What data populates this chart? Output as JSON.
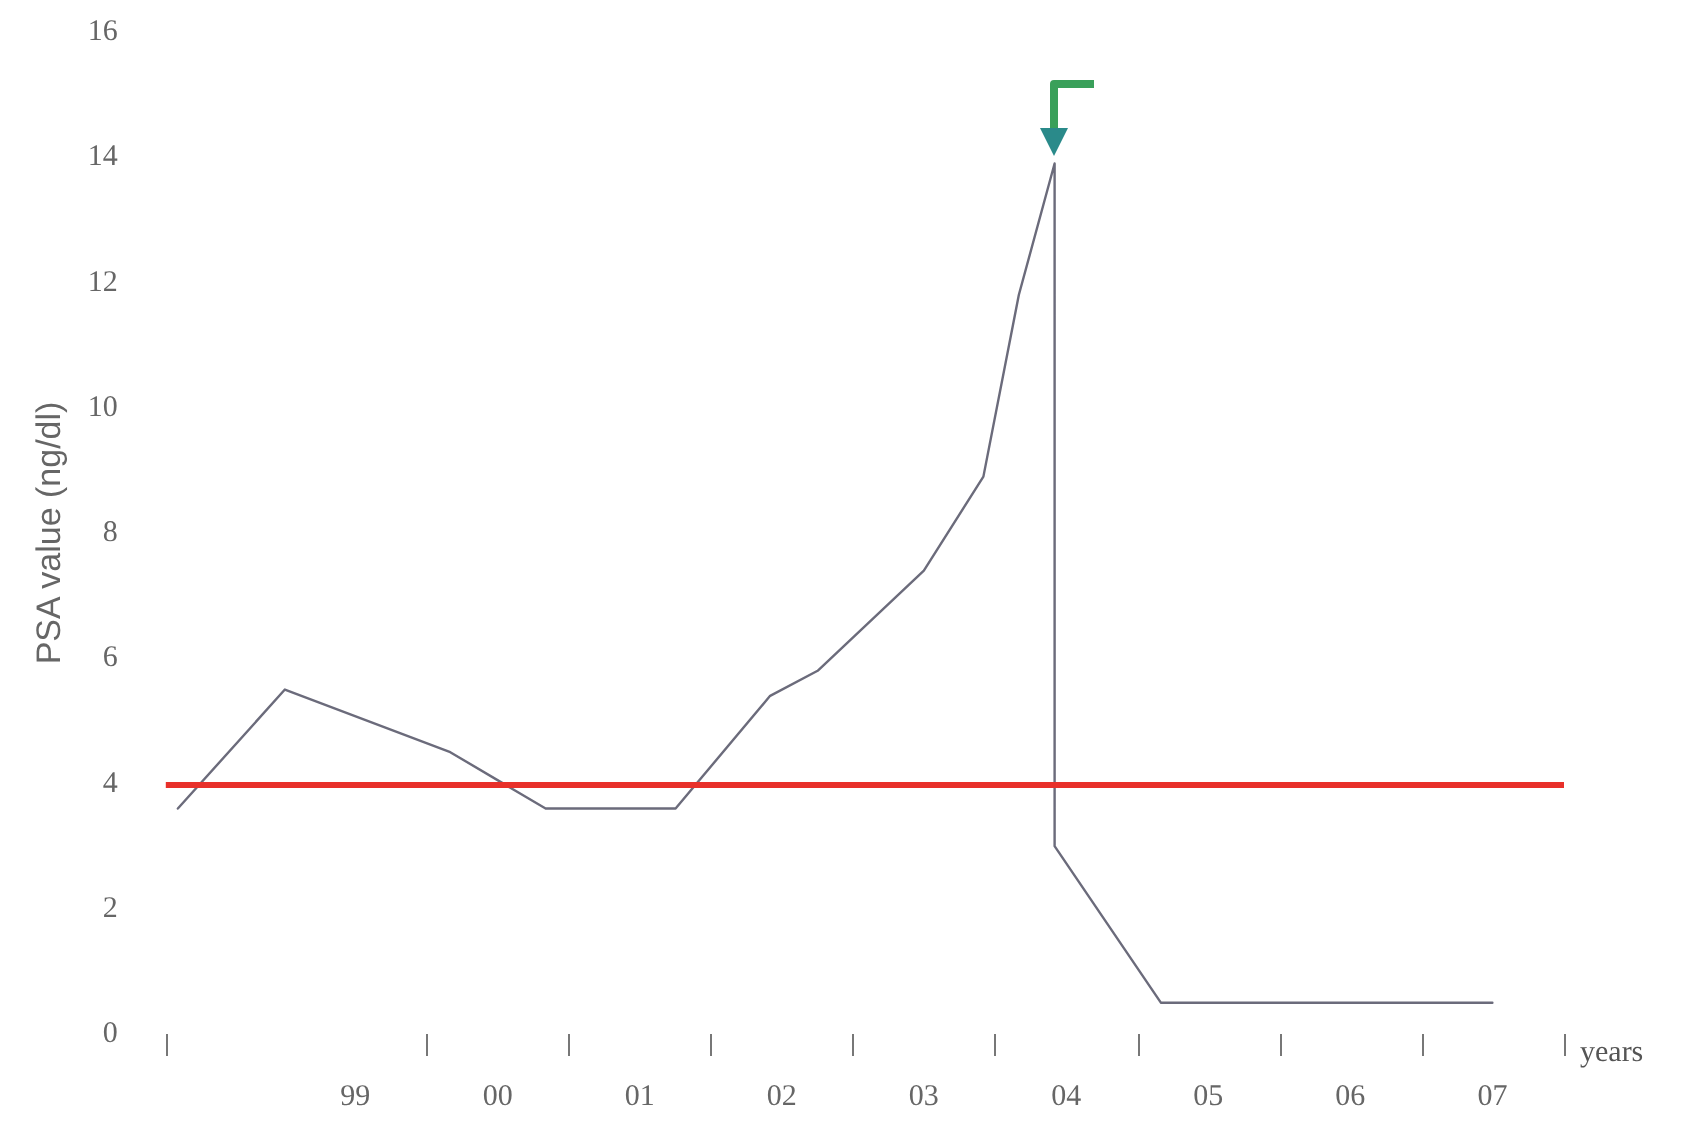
{
  "chart_data": {
    "type": "line",
    "ylabel": "PSA value (ng/dl)",
    "xlabel": "years",
    "x": [
      "1998-04",
      "1999-01",
      "2000-03",
      "2000-11",
      "2001-10",
      "2002-06",
      "2002-10",
      "2003-07",
      "2003-12",
      "2004-03",
      "2004-06",
      "2004-06",
      "2005-03",
      "2007-07"
    ],
    "series": [
      {
        "color": "#6b6b7b",
        "values": [
          3.6,
          5.5,
          4.5,
          3.6,
          3.6,
          5.4,
          5.8,
          7.4,
          8.9,
          11.8,
          13.9,
          3.0,
          0.5,
          0.5
        ]
      }
    ],
    "xlim": [
      "1998-03",
      "2008"
    ],
    "xticks": [
      {
        "value": "1998-03",
        "label": null
      },
      {
        "value": "1999-07",
        "label": "99"
      },
      {
        "value": "2000",
        "label": null
      },
      {
        "value": "2000-07",
        "label": "00"
      },
      {
        "value": "2001",
        "label": null
      },
      {
        "value": "2001-07",
        "label": "01"
      },
      {
        "value": "2002",
        "label": null
      },
      {
        "value": "2002-07",
        "label": "02"
      },
      {
        "value": "2003",
        "label": null
      },
      {
        "value": "2003-07",
        "label": "03"
      },
      {
        "value": "2004",
        "label": null
      },
      {
        "value": "2004-07",
        "label": "04"
      },
      {
        "value": "2005",
        "label": null
      },
      {
        "value": "2005-07",
        "label": "05"
      },
      {
        "value": "2006",
        "label": null
      },
      {
        "value": "2006-07",
        "label": "06"
      },
      {
        "value": "2007",
        "label": null
      },
      {
        "value": "2007-07",
        "label": "07"
      },
      {
        "value": "2008",
        "label": null
      }
    ],
    "ylim": [
      0,
      16
    ],
    "yticks": [
      0,
      2,
      4,
      6,
      8,
      10,
      12,
      14,
      16
    ],
    "ref_lines": [
      {
        "axis": "y",
        "value": 4,
        "color": "#e8302a"
      }
    ],
    "grid": false,
    "marker": "none",
    "line_style": "solid"
  }
}
